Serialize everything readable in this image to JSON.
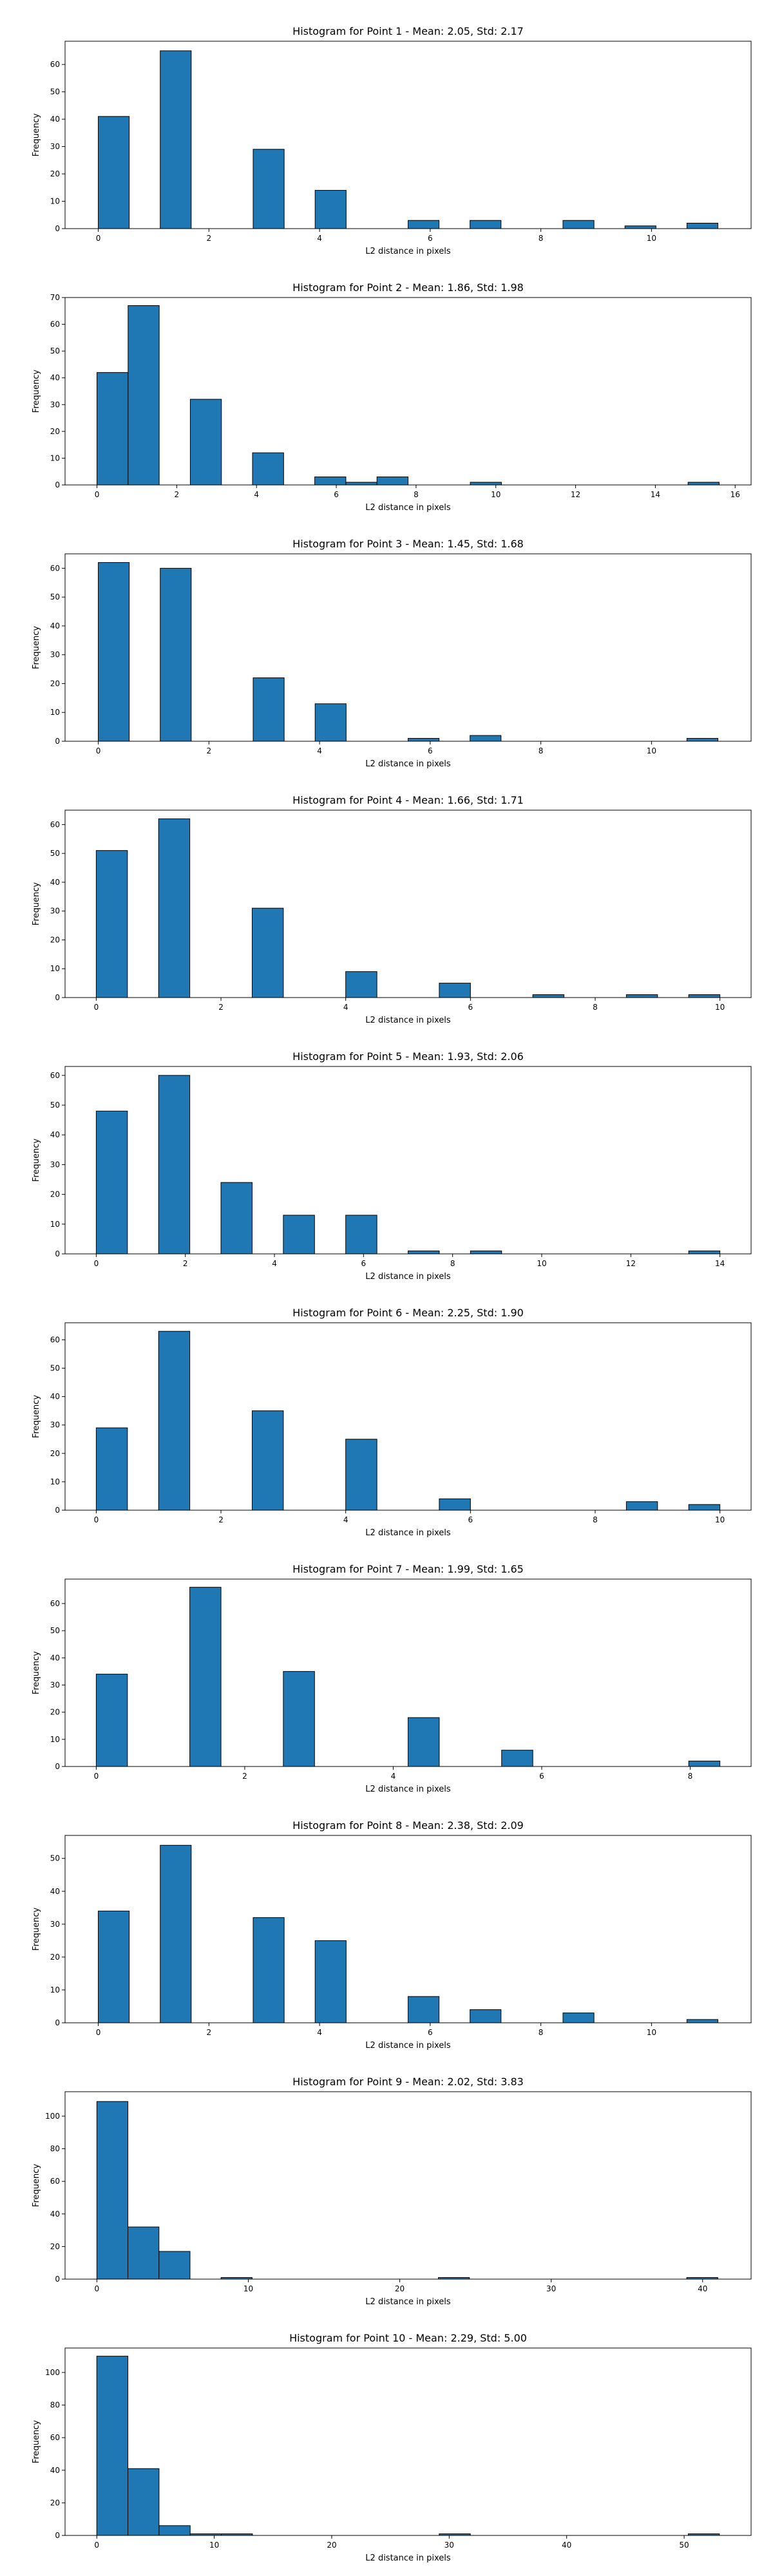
{
  "chart_data": [
    {
      "type": "bar",
      "title": "Histogram for Point 1 - Mean: 2.05, Std: 2.17",
      "xlabel": "L2 distance in pixels",
      "ylabel": "Frequency",
      "xlim": [
        -0.6,
        11.8
      ],
      "ylim": [
        0,
        68.5
      ],
      "xticks": [
        0,
        2,
        4,
        6,
        8,
        10
      ],
      "yticks": [
        0,
        10,
        20,
        30,
        40,
        50,
        60
      ],
      "bins": [
        [
          0,
          0.56,
          41
        ],
        [
          1.12,
          1.68,
          65
        ],
        [
          2.8,
          3.36,
          29
        ],
        [
          3.92,
          4.48,
          14
        ],
        [
          5.6,
          6.16,
          3
        ],
        [
          6.72,
          7.28,
          3
        ],
        [
          8.4,
          8.96,
          3
        ],
        [
          9.52,
          10.08,
          1
        ],
        [
          10.64,
          11.2,
          2
        ]
      ]
    },
    {
      "type": "bar",
      "title": "Histogram for Point 2 - Mean: 1.86, Std: 1.98",
      "xlabel": "L2 distance in pixels",
      "ylabel": "Frequency",
      "xlim": [
        -0.8,
        16.4
      ],
      "ylim": [
        0,
        70
      ],
      "xticks": [
        0,
        2,
        4,
        6,
        8,
        10,
        12,
        14,
        16
      ],
      "yticks": [
        0,
        10,
        20,
        30,
        40,
        50,
        60,
        70
      ],
      "bins": [
        [
          0,
          0.78,
          42
        ],
        [
          0.78,
          1.56,
          67
        ],
        [
          2.34,
          3.12,
          32
        ],
        [
          3.9,
          4.68,
          12
        ],
        [
          5.46,
          6.24,
          3
        ],
        [
          6.24,
          7.02,
          1
        ],
        [
          7.02,
          7.8,
          3
        ],
        [
          9.36,
          10.14,
          1
        ],
        [
          14.82,
          15.6,
          1
        ]
      ]
    },
    {
      "type": "bar",
      "title": "Histogram for Point 3 - Mean: 1.45, Std: 1.68",
      "xlabel": "L2 distance in pixels",
      "ylabel": "Frequency",
      "xlim": [
        -0.6,
        11.8
      ],
      "ylim": [
        0,
        65
      ],
      "xticks": [
        0,
        2,
        4,
        6,
        8,
        10
      ],
      "yticks": [
        0,
        10,
        20,
        30,
        40,
        50,
        60
      ],
      "bins": [
        [
          0,
          0.56,
          62
        ],
        [
          1.12,
          1.68,
          60
        ],
        [
          2.8,
          3.36,
          22
        ],
        [
          3.92,
          4.48,
          13
        ],
        [
          5.6,
          6.16,
          1
        ],
        [
          6.72,
          7.28,
          2
        ],
        [
          10.64,
          11.2,
          1
        ]
      ]
    },
    {
      "type": "bar",
      "title": "Histogram for Point 4 - Mean: 1.66, Std: 1.71",
      "xlabel": "L2 distance in pixels",
      "ylabel": "Frequency",
      "xlim": [
        -0.5,
        10.5
      ],
      "ylim": [
        0,
        65
      ],
      "xticks": [
        0,
        2,
        4,
        6,
        8,
        10
      ],
      "yticks": [
        0,
        10,
        20,
        30,
        40,
        50,
        60
      ],
      "bins": [
        [
          0,
          0.5,
          51
        ],
        [
          1,
          1.5,
          62
        ],
        [
          2.5,
          3,
          31
        ],
        [
          4,
          4.5,
          9
        ],
        [
          5.5,
          6,
          5
        ],
        [
          7,
          7.5,
          1
        ],
        [
          8.5,
          9,
          1
        ],
        [
          9.5,
          10,
          1
        ]
      ]
    },
    {
      "type": "bar",
      "title": "Histogram for Point 5 - Mean: 1.93, Std: 2.06",
      "xlabel": "L2 distance in pixels",
      "ylabel": "Frequency",
      "xlim": [
        -0.7,
        14.7
      ],
      "ylim": [
        0,
        63
      ],
      "xticks": [
        0,
        2,
        4,
        6,
        8,
        10,
        12,
        14
      ],
      "yticks": [
        0,
        10,
        20,
        30,
        40,
        50,
        60
      ],
      "bins": [
        [
          0,
          0.7,
          48
        ],
        [
          1.4,
          2.1,
          60
        ],
        [
          2.8,
          3.5,
          24
        ],
        [
          4.2,
          4.9,
          13
        ],
        [
          5.6,
          6.3,
          13
        ],
        [
          7,
          7.7,
          1
        ],
        [
          8.4,
          9.1,
          1
        ],
        [
          13.3,
          14,
          1
        ]
      ]
    },
    {
      "type": "bar",
      "title": "Histogram for Point 6 - Mean: 2.25, Std: 1.90",
      "xlabel": "L2 distance in pixels",
      "ylabel": "Frequency",
      "xlim": [
        -0.5,
        10.5
      ],
      "ylim": [
        0,
        66
      ],
      "xticks": [
        0,
        2,
        4,
        6,
        8,
        10
      ],
      "yticks": [
        0,
        10,
        20,
        30,
        40,
        50,
        60
      ],
      "bins": [
        [
          0,
          0.5,
          29
        ],
        [
          1,
          1.5,
          63
        ],
        [
          2.5,
          3,
          35
        ],
        [
          4,
          4.5,
          25
        ],
        [
          5.5,
          6,
          4
        ],
        [
          8.5,
          9,
          3
        ],
        [
          9.5,
          10,
          2
        ]
      ]
    },
    {
      "type": "bar",
      "title": "Histogram for Point 7 - Mean: 1.99, Std: 1.65",
      "xlabel": "L2 distance in pixels",
      "ylabel": "Frequency",
      "xlim": [
        -0.42,
        8.82
      ],
      "ylim": [
        0,
        69
      ],
      "xticks": [
        0,
        2,
        4,
        6,
        8
      ],
      "yticks": [
        0,
        10,
        20,
        30,
        40,
        50,
        60
      ],
      "bins": [
        [
          0,
          0.42,
          34
        ],
        [
          1.26,
          1.68,
          66
        ],
        [
          2.52,
          2.94,
          35
        ],
        [
          4.2,
          4.62,
          18
        ],
        [
          5.46,
          5.88,
          6
        ],
        [
          7.98,
          8.4,
          2
        ]
      ]
    },
    {
      "type": "bar",
      "title": "Histogram for Point 8 - Mean: 2.38, Std: 2.09",
      "xlabel": "L2 distance in pixels",
      "ylabel": "Frequency",
      "xlim": [
        -0.6,
        11.8
      ],
      "ylim": [
        0,
        57
      ],
      "xticks": [
        0,
        2,
        4,
        6,
        8,
        10
      ],
      "yticks": [
        0,
        10,
        20,
        30,
        40,
        50
      ],
      "bins": [
        [
          0,
          0.56,
          34
        ],
        [
          1.12,
          1.68,
          54
        ],
        [
          2.8,
          3.36,
          32
        ],
        [
          3.92,
          4.48,
          25
        ],
        [
          5.6,
          6.16,
          8
        ],
        [
          6.72,
          7.28,
          4
        ],
        [
          8.4,
          8.96,
          3
        ],
        [
          10.64,
          11.2,
          1
        ]
      ]
    },
    {
      "type": "bar",
      "title": "Histogram for Point 9 - Mean: 2.02, Std: 3.83",
      "xlabel": "L2 distance in pixels",
      "ylabel": "Frequency",
      "xlim": [
        -2.1,
        43.2
      ],
      "ylim": [
        0,
        115
      ],
      "xticks": [
        0,
        10,
        20,
        30,
        40
      ],
      "yticks": [
        0,
        20,
        40,
        60,
        80,
        100
      ],
      "bins": [
        [
          0,
          2.05,
          109
        ],
        [
          2.05,
          4.1,
          32
        ],
        [
          4.1,
          6.15,
          17
        ],
        [
          8.2,
          10.25,
          1
        ],
        [
          22.55,
          24.6,
          1
        ],
        [
          38.95,
          41,
          1
        ]
      ]
    },
    {
      "type": "bar",
      "title": "Histogram for Point 10 - Mean: 2.29, Std: 5.00",
      "xlabel": "L2 distance in pixels",
      "ylabel": "Frequency",
      "xlim": [
        -2.7,
        55.7
      ],
      "ylim": [
        0,
        115
      ],
      "xticks": [
        0,
        10,
        20,
        30,
        40,
        50
      ],
      "yticks": [
        0,
        20,
        40,
        60,
        80,
        100
      ],
      "bins": [
        [
          0,
          2.65,
          110
        ],
        [
          2.65,
          5.3,
          41
        ],
        [
          5.3,
          7.95,
          6
        ],
        [
          7.95,
          10.6,
          1
        ],
        [
          10.6,
          13.25,
          1
        ],
        [
          29.15,
          31.8,
          1
        ],
        [
          50.35,
          53,
          1
        ]
      ]
    }
  ],
  "colors": {
    "bar_fill": "#1f77b4",
    "bar_edge": "#000000",
    "axes": "#000000",
    "background": "#ffffff"
  }
}
